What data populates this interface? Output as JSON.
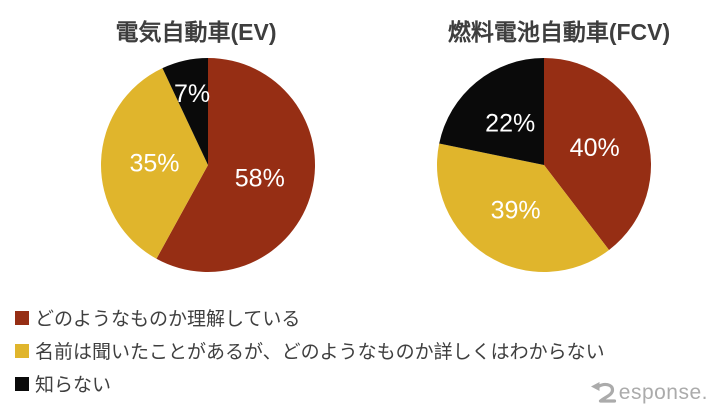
{
  "chart_data": [
    {
      "type": "pie",
      "title": "電気自動車(EV)",
      "categories": [
        "どのようなものか理解している",
        "名前は聞いたことがあるが、どのようなものか詳しくはわからない",
        "知らない"
      ],
      "values": [
        58,
        35,
        7
      ],
      "data_labels": [
        "58%",
        "35%",
        "7%"
      ],
      "colors": [
        "#962E14",
        "#E0B52C",
        "#0A0A0A"
      ],
      "start_angle_deg": 0,
      "direction": "clockwise",
      "data_label_color": "#FFFFFF"
    },
    {
      "type": "pie",
      "title": "燃料電池自動車(FCV)",
      "categories": [
        "どのようなものか理解している",
        "名前は聞いたことがあるが、どのようなものか詳しくはわからない",
        "知らない"
      ],
      "values": [
        40,
        39,
        22
      ],
      "data_labels": [
        "40%",
        "39%",
        "22%"
      ],
      "colors": [
        "#962E14",
        "#E0B52C",
        "#0A0A0A"
      ],
      "start_angle_deg": 0,
      "direction": "clockwise",
      "data_label_color": "#FFFFFF"
    }
  ],
  "legend": {
    "position": "bottom-left",
    "items": [
      {
        "label": "どのようなものか理解している",
        "color": "#962E14"
      },
      {
        "label": "名前は聞いたことがあるが、どのようなものか詳しくはわからない",
        "color": "#E0B52C"
      },
      {
        "label": "知らない",
        "color": "#0A0A0A"
      }
    ]
  },
  "watermark": {
    "text": "Response.",
    "color": "#ABABAB"
  }
}
